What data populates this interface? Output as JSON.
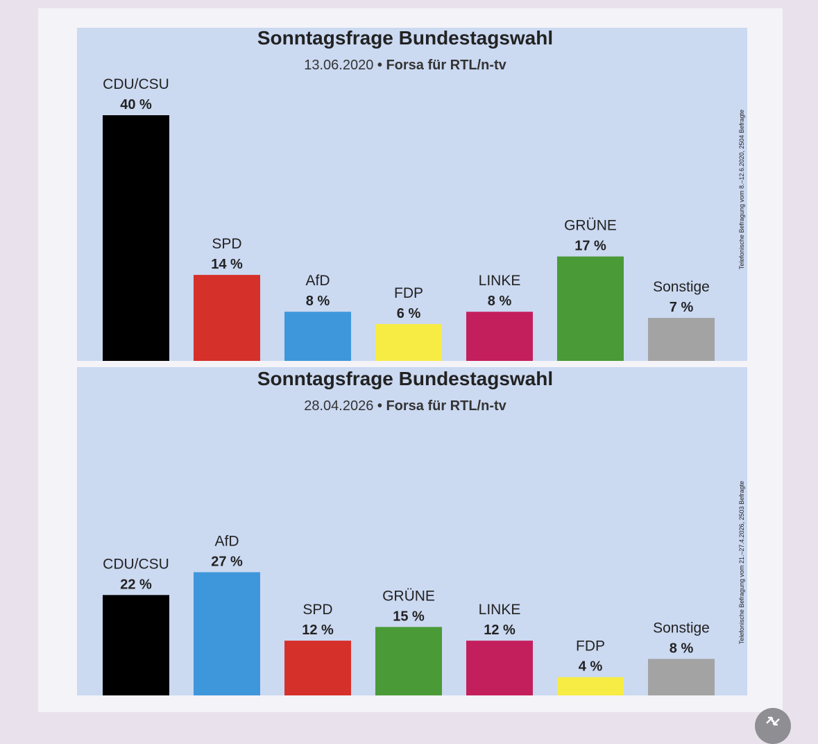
{
  "chart_data": [
    {
      "type": "bar",
      "title": "Sonntagsfrage Bundestagswahl",
      "subtitle_date": "13.06.2020",
      "subtitle_separator": "•",
      "subtitle_source": "Forsa für RTL/n-tv",
      "side_note": "Telefonische Befragung vom 8.–12.6.2020, 2504 Befragte",
      "categories": [
        "CDU/CSU",
        "SPD",
        "AfD",
        "FDP",
        "LINKE",
        "GRÜNE",
        "Sonstige"
      ],
      "values": [
        40,
        14,
        8,
        6,
        8,
        17,
        7
      ],
      "value_labels": [
        "40 %",
        "14 %",
        "8 %",
        "6 %",
        "8 %",
        "17 %",
        "7 %"
      ],
      "colors": [
        "#000000",
        "#d6302a",
        "#3f97db",
        "#f7ec43",
        "#c41f5d",
        "#4a9a37",
        "#a3a3a3"
      ],
      "ylim": [
        0,
        40
      ],
      "grid": false,
      "legend": "none"
    },
    {
      "type": "bar",
      "title": "Sonntagsfrage Bundestagswahl",
      "subtitle_date": "28.04.2026",
      "subtitle_separator": "•",
      "subtitle_source": "Forsa für RTL/n-tv",
      "side_note": "Telefonische Befragung vom 21.–27.4.2026, 2503 Befragte",
      "categories": [
        "CDU/CSU",
        "AfD",
        "SPD",
        "GRÜNE",
        "LINKE",
        "FDP",
        "Sonstige"
      ],
      "values": [
        22,
        27,
        12,
        15,
        12,
        4,
        8
      ],
      "value_labels": [
        "22 %",
        "27 %",
        "12 %",
        "15 %",
        "12 %",
        "4 %",
        "8 %"
      ],
      "colors": [
        "#000000",
        "#3f97db",
        "#d6302a",
        "#4a9a37",
        "#c41f5d",
        "#f7ec43",
        "#a3a3a3"
      ],
      "ylim": [
        0,
        40
      ],
      "grid": false,
      "legend": "none"
    }
  ],
  "controls": {
    "playback_icon": "playback-icon"
  }
}
